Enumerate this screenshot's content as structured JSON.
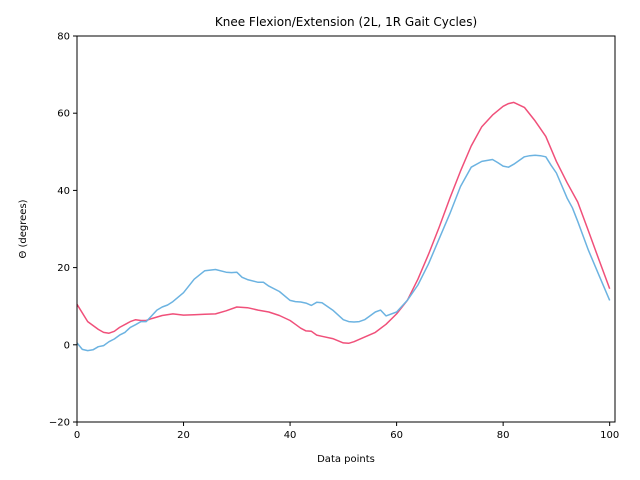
{
  "chart_data": {
    "type": "line",
    "title": "Knee Flexion/Extension (2L, 1R Gait Cycles)",
    "xlabel": "Data points",
    "ylabel": "Θ (degrees)",
    "xlim": [
      0,
      101
    ],
    "ylim": [
      -20,
      80
    ],
    "xticks": [
      0,
      20,
      40,
      60,
      80,
      100
    ],
    "yticks": [
      -20,
      0,
      20,
      40,
      60,
      80
    ],
    "grid": false,
    "series": [
      {
        "color": "#f0507a",
        "x": [
          0,
          2,
          4,
          5,
          6,
          7,
          8,
          10,
          11,
          12,
          13,
          14,
          16,
          18,
          20,
          22,
          24,
          26,
          28,
          30,
          32,
          34,
          36,
          38,
          40,
          41,
          42,
          43,
          44,
          45,
          46,
          48,
          50,
          51,
          52,
          54,
          56,
          58,
          60,
          62,
          64,
          66,
          68,
          70,
          72,
          74,
          76,
          78,
          80,
          81,
          82,
          84,
          86,
          88,
          90,
          92,
          94,
          96,
          98,
          100
        ],
        "y": [
          10.5,
          6,
          4,
          3.2,
          3.0,
          3.5,
          4.5,
          6.0,
          6.5,
          6.3,
          6.3,
          6.8,
          7.6,
          8.0,
          7.7,
          7.8,
          7.9,
          8.0,
          8.8,
          9.8,
          9.6,
          9.0,
          8.5,
          7.6,
          6.3,
          5.3,
          4.3,
          3.6,
          3.5,
          2.5,
          2.2,
          1.6,
          0.5,
          0.4,
          0.8,
          2.0,
          3.2,
          5.3,
          8.0,
          11.5,
          17.0,
          23.5,
          30.5,
          38.0,
          45.0,
          51.5,
          56.5,
          59.5,
          61.8,
          62.5,
          62.8,
          61.5,
          58.0,
          54.0,
          47.5,
          42.0,
          37.0,
          29.5,
          22.0,
          14.5
        ]
      },
      {
        "color": "#6cb3e1",
        "x": [
          0,
          1,
          2,
          3,
          4,
          5,
          6,
          7,
          8,
          9,
          10,
          11,
          12,
          13,
          14,
          15,
          16,
          17,
          18,
          20,
          22,
          24,
          26,
          28,
          29,
          30,
          31,
          32,
          34,
          35,
          36,
          38,
          40,
          41,
          42,
          43,
          44,
          45,
          46,
          48,
          50,
          51,
          52,
          53,
          54,
          55,
          56,
          57,
          58,
          60,
          62,
          64,
          66,
          68,
          70,
          72,
          74,
          76,
          78,
          79,
          80,
          81,
          82,
          84,
          85,
          86,
          87,
          88,
          89,
          90,
          92,
          93,
          94,
          96,
          98,
          100
        ],
        "y": [
          0.5,
          -1.2,
          -1.5,
          -1.3,
          -0.5,
          -0.2,
          0.8,
          1.5,
          2.5,
          3.2,
          4.5,
          5.2,
          6.0,
          6.0,
          7.5,
          9.0,
          9.8,
          10.3,
          11.2,
          13.5,
          17.0,
          19.2,
          19.5,
          18.8,
          18.7,
          18.8,
          17.5,
          16.9,
          16.2,
          16.2,
          15.2,
          13.8,
          11.5,
          11.2,
          11.1,
          10.8,
          10.2,
          11.0,
          10.9,
          9.0,
          6.5,
          6.0,
          5.9,
          6.0,
          6.5,
          7.5,
          8.5,
          9.0,
          7.5,
          8.5,
          11.5,
          15.5,
          21.0,
          27.5,
          34.0,
          41.0,
          46.0,
          47.5,
          48.0,
          47.2,
          46.3,
          46.0,
          46.8,
          48.7,
          49.0,
          49.1,
          49.0,
          48.7,
          46.5,
          44.5,
          38.0,
          35.5,
          32.0,
          24.5,
          18.0,
          11.5
        ]
      }
    ]
  }
}
